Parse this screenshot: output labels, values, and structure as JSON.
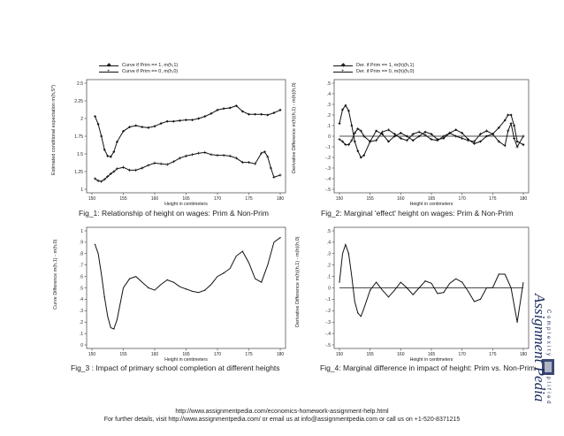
{
  "footer": {
    "line1": "http://www.assignmentpedia.com/economics-homework-assignment-help.html",
    "line2": "For further details, visit http://www.assignmentpedia.com/ or email us at info@assignmentpedia.com or call us on +1-520-8371215"
  },
  "logo_text": "Assignment Pedia",
  "logo_tagline": "Complexity simplified",
  "chart_data": [
    {
      "type": "line",
      "caption": "Fig_1: Relationship of height on wages: Prim & Non-Prim",
      "xlabel": "Height in centimeters",
      "ylabel": "Estimated conditional expectation m(h,S*)",
      "xlim": [
        150,
        180
      ],
      "ylim": [
        1,
        2.5
      ],
      "xticks": [
        "150",
        "155",
        "160",
        "165",
        "170",
        "175",
        "180"
      ],
      "yticks": [
        "1",
        "1.25",
        "1.5",
        "1.75",
        "2",
        "2.25",
        "2.5"
      ],
      "legend": [
        "Curve if Prim == 1, m(h,1)",
        "Curve if Prim == 0, m(h,0)"
      ],
      "series": [
        {
          "name": "Curve if Prim == 1, m(h,1)",
          "x": [
            150.5,
            151,
            151.5,
            152,
            152.5,
            153,
            153.5,
            154,
            155,
            156,
            157,
            158,
            159,
            160,
            161,
            162,
            163,
            164,
            165,
            166,
            167,
            168,
            169,
            170,
            171,
            172,
            173,
            174,
            175,
            176,
            177,
            178,
            179,
            180
          ],
          "values": [
            2.03,
            1.92,
            1.75,
            1.56,
            1.47,
            1.46,
            1.53,
            1.67,
            1.82,
            1.88,
            1.9,
            1.88,
            1.87,
            1.89,
            1.93,
            1.96,
            1.96,
            1.97,
            1.98,
            1.98,
            2.0,
            2.03,
            2.07,
            2.12,
            2.14,
            2.15,
            2.18,
            2.1,
            2.06,
            2.06,
            2.06,
            2.05,
            2.08,
            2.12
          ]
        },
        {
          "name": "Curve if Prim == 0, m(h,0)",
          "x": [
            150.5,
            151,
            151.5,
            152,
            152.5,
            153,
            153.5,
            154,
            155,
            156,
            157,
            158,
            159,
            160,
            161,
            162,
            163,
            164,
            165,
            166,
            167,
            168,
            169,
            170,
            171,
            172,
            173,
            174,
            175,
            176,
            177,
            177.5,
            178,
            178.5,
            179,
            180
          ],
          "values": [
            1.15,
            1.12,
            1.11,
            1.14,
            1.18,
            1.22,
            1.25,
            1.29,
            1.31,
            1.27,
            1.27,
            1.3,
            1.34,
            1.37,
            1.36,
            1.35,
            1.39,
            1.44,
            1.47,
            1.49,
            1.51,
            1.52,
            1.49,
            1.48,
            1.48,
            1.47,
            1.44,
            1.38,
            1.38,
            1.36,
            1.51,
            1.53,
            1.46,
            1.3,
            1.17,
            1.2
          ]
        }
      ]
    },
    {
      "type": "line",
      "caption": "Fig_2: Marginal 'effect' height on wages: Prim & Non-Prim",
      "xlabel": "Height in centimeters",
      "ylabel": "Derivative Difference m(h)(h,1) - m(h)(h,0)",
      "xlim": [
        150,
        180
      ],
      "ylim": [
        -0.5,
        0.5
      ],
      "xticks": [
        "150",
        "155",
        "160",
        "165",
        "170",
        "175",
        "180"
      ],
      "yticks": [
        "-.5",
        "-.4",
        "-.3",
        "-.2",
        "-.1",
        "0",
        ".1",
        ".2",
        ".3",
        ".4",
        ".5"
      ],
      "legend": [
        "Der. if Prim == 1, m(h)(h,1)",
        "Der. if Prim == 0, m(h)(h,0)"
      ],
      "series": [
        {
          "name": "Der. if Prim == 1, m(h)(h,1)",
          "x": [
            150,
            150.5,
            151,
            151.5,
            152,
            152.5,
            153,
            153.5,
            154,
            155,
            156,
            157,
            158,
            159,
            160,
            161,
            162,
            163,
            164,
            165,
            166,
            167,
            168,
            169,
            170,
            171,
            172,
            173,
            174,
            175,
            176,
            177,
            177.5,
            178,
            178.5,
            179,
            180
          ],
          "values": [
            0.12,
            0.25,
            0.29,
            0.24,
            0.1,
            -0.05,
            -0.14,
            -0.2,
            -0.18,
            -0.05,
            0.05,
            0.02,
            -0.05,
            0.0,
            0.03,
            0.0,
            -0.04,
            0.0,
            0.04,
            0.02,
            -0.03,
            -0.02,
            0.03,
            0.06,
            0.03,
            -0.03,
            -0.07,
            -0.05,
            0.0,
            0.02,
            0.08,
            0.15,
            0.2,
            0.2,
            0.1,
            -0.05,
            -0.08
          ]
        },
        {
          "name": "Der. if Prim == 0, m(h)(h,0)",
          "x": [
            150,
            150.5,
            151,
            151.5,
            152,
            152.5,
            153,
            153.5,
            154,
            155,
            156,
            157,
            158,
            159,
            160,
            161,
            162,
            163,
            164,
            165,
            166,
            167,
            168,
            169,
            170,
            171,
            172,
            173,
            174,
            175,
            176,
            177,
            177.5,
            178,
            178.5,
            179,
            180
          ],
          "values": [
            -0.03,
            -0.05,
            -0.08,
            -0.08,
            -0.04,
            0.03,
            0.07,
            0.05,
            0.0,
            -0.05,
            -0.04,
            0.04,
            0.06,
            0.02,
            -0.02,
            -0.04,
            0.02,
            0.04,
            0.01,
            -0.03,
            -0.04,
            0.0,
            0.03,
            0.0,
            -0.02,
            -0.04,
            -0.05,
            0.02,
            0.05,
            0.02,
            -0.05,
            -0.09,
            0.05,
            0.12,
            -0.02,
            -0.1,
            0.0
          ]
        }
      ]
    },
    {
      "type": "line",
      "caption": "Fig_3 : Impact of primary school completion at different heights",
      "xlabel": "Height in centimeters",
      "ylabel": "Curve Difference m(h,1) - m(h,0)",
      "xlim": [
        150,
        180
      ],
      "ylim": [
        0,
        1
      ],
      "xticks": [
        "150",
        "155",
        "160",
        "165",
        "170",
        "175",
        "180"
      ],
      "yticks": [
        "0",
        ".1",
        ".2",
        ".3",
        ".4",
        ".5",
        ".6",
        ".7",
        ".8",
        ".9",
        "1"
      ],
      "series": [
        {
          "name": "",
          "x": [
            150.5,
            151,
            151.5,
            152,
            152.5,
            153,
            153.5,
            154,
            155,
            156,
            157,
            158,
            159,
            160,
            161,
            162,
            163,
            164,
            165,
            166,
            167,
            168,
            169,
            170,
            171,
            172,
            173,
            174,
            175,
            176,
            177,
            178,
            179,
            180
          ],
          "values": [
            0.88,
            0.8,
            0.62,
            0.42,
            0.25,
            0.15,
            0.14,
            0.22,
            0.5,
            0.58,
            0.6,
            0.55,
            0.5,
            0.48,
            0.53,
            0.57,
            0.55,
            0.51,
            0.49,
            0.47,
            0.46,
            0.48,
            0.53,
            0.6,
            0.63,
            0.67,
            0.78,
            0.82,
            0.72,
            0.58,
            0.55,
            0.7,
            0.9,
            0.94
          ]
        }
      ]
    },
    {
      "type": "line",
      "caption": "Fig_4: Marginal difference in impact of height: Prim vs. Non-Prim",
      "xlabel": "Height in centimeters",
      "ylabel": "Derivative Difference m(h)(h,1) - m(h)(h,0)",
      "xlim": [
        150,
        180
      ],
      "ylim": [
        -0.5,
        0.5
      ],
      "xticks": [
        "150",
        "155",
        "160",
        "165",
        "170",
        "175",
        "180"
      ],
      "yticks": [
        "-.5",
        "-.4",
        "-.3",
        "-.2",
        "-.1",
        "0",
        ".1",
        ".2",
        ".3",
        ".4",
        ".5"
      ],
      "series": [
        {
          "name": "",
          "x": [
            150,
            150.5,
            151,
            151.5,
            152,
            152.5,
            153,
            153.5,
            154,
            155,
            156,
            157,
            158,
            159,
            160,
            161,
            162,
            163,
            164,
            165,
            166,
            167,
            168,
            169,
            170,
            171,
            172,
            173,
            174,
            175,
            176,
            177,
            178,
            179,
            180
          ],
          "values": [
            0.05,
            0.3,
            0.38,
            0.3,
            0.1,
            -0.12,
            -0.22,
            -0.25,
            -0.18,
            -0.02,
            0.05,
            -0.02,
            -0.08,
            -0.02,
            0.05,
            0.0,
            -0.06,
            0.0,
            0.06,
            0.04,
            -0.05,
            -0.04,
            0.04,
            0.08,
            0.05,
            -0.03,
            -0.12,
            -0.1,
            0.0,
            0.0,
            0.12,
            0.12,
            0.0,
            -0.3,
            0.05
          ]
        }
      ]
    }
  ]
}
